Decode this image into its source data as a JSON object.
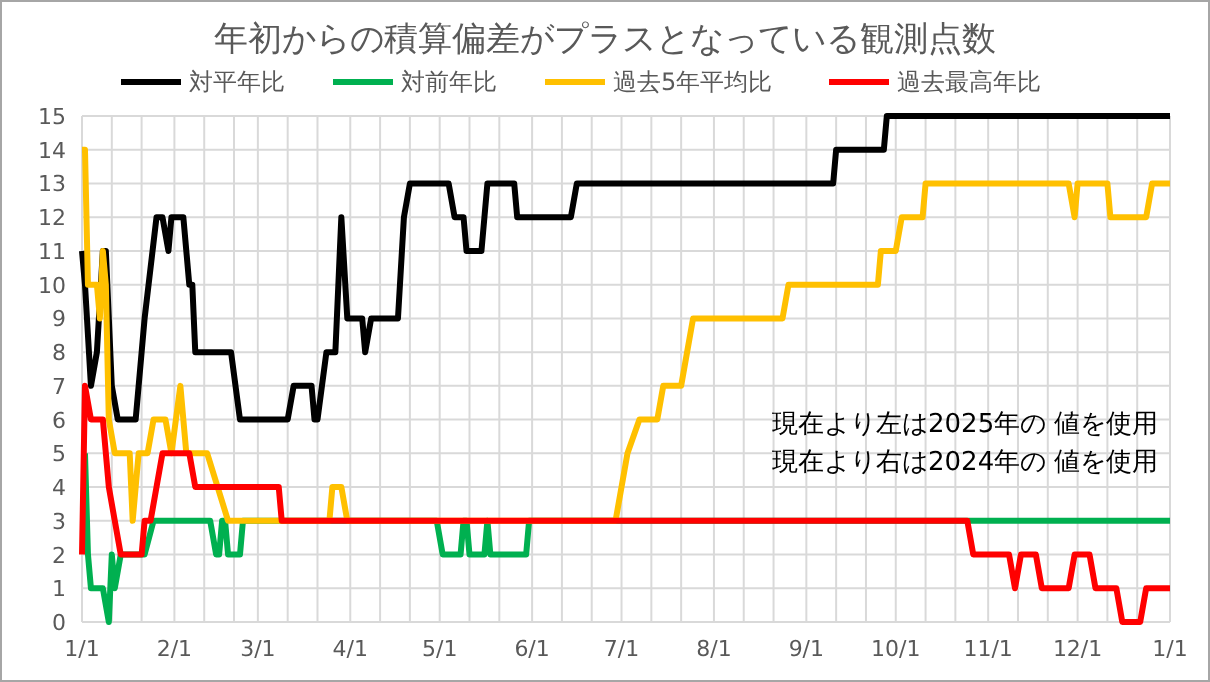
{
  "chart_data": {
    "type": "line",
    "title": "年初からの積算偏差がプラスとなっている観測点数",
    "xlim": [
      "2025-01-01",
      "2026-01-01"
    ],
    "ylim": [
      0,
      15
    ],
    "xticks": [
      {
        "value": "2025-01-01",
        "label": "1/1"
      },
      {
        "value": "2025-01-11",
        "label": null
      },
      {
        "value": "2025-01-21",
        "label": null
      },
      {
        "value": "2025-02-01",
        "label": "2/1"
      },
      {
        "value": "2025-02-11",
        "label": null
      },
      {
        "value": "2025-02-21",
        "label": null
      },
      {
        "value": "2025-03-01",
        "label": "3/1"
      },
      {
        "value": "2025-03-11",
        "label": null
      },
      {
        "value": "2025-03-21",
        "label": null
      },
      {
        "value": "2025-04-01",
        "label": "4/1"
      },
      {
        "value": "2025-04-11",
        "label": null
      },
      {
        "value": "2025-04-21",
        "label": null
      },
      {
        "value": "2025-05-01",
        "label": "5/1"
      },
      {
        "value": "2025-05-11",
        "label": null
      },
      {
        "value": "2025-05-21",
        "label": null
      },
      {
        "value": "2025-06-01",
        "label": "6/1"
      },
      {
        "value": "2025-06-11",
        "label": null
      },
      {
        "value": "2025-06-21",
        "label": null
      },
      {
        "value": "2025-07-01",
        "label": "7/1"
      },
      {
        "value": "2025-07-11",
        "label": null
      },
      {
        "value": "2025-07-21",
        "label": null
      },
      {
        "value": "2025-08-01",
        "label": "8/1"
      },
      {
        "value": "2025-08-11",
        "label": null
      },
      {
        "value": "2025-08-21",
        "label": null
      },
      {
        "value": "2025-09-01",
        "label": "9/1"
      },
      {
        "value": "2025-09-11",
        "label": null
      },
      {
        "value": "2025-09-21",
        "label": null
      },
      {
        "value": "2025-10-01",
        "label": "10/1"
      },
      {
        "value": "2025-10-11",
        "label": null
      },
      {
        "value": "2025-10-21",
        "label": null
      },
      {
        "value": "2025-11-01",
        "label": "11/1"
      },
      {
        "value": "2025-11-11",
        "label": null
      },
      {
        "value": "2025-11-21",
        "label": null
      },
      {
        "value": "2025-12-01",
        "label": "12/1"
      },
      {
        "value": "2025-12-11",
        "label": null
      },
      {
        "value": "2025-12-21",
        "label": null
      },
      {
        "value": "2026-01-01",
        "label": "1/1"
      }
    ],
    "yticks": [
      0,
      1,
      2,
      3,
      4,
      5,
      6,
      7,
      8,
      9,
      10,
      11,
      12,
      13,
      14,
      15
    ],
    "grid": true,
    "legend": "top",
    "line_style": "solid",
    "annotations": [
      "現在より左は2025年の 値を使用",
      "現在より右は2024年の 値を使用"
    ],
    "series": [
      {
        "name": "対平年比",
        "color": "#000000",
        "x": [
          "2025-01-01",
          "2025-01-02",
          "2025-01-04",
          "2025-01-06",
          "2025-01-08",
          "2025-01-09",
          "2025-01-11",
          "2025-01-13",
          "2025-01-19",
          "2025-01-21",
          "2025-01-22",
          "2025-01-26",
          "2025-01-28",
          "2025-01-30",
          "2025-01-31",
          "2025-02-04",
          "2025-02-06",
          "2025-02-07",
          "2025-02-08",
          "2025-02-20",
          "2025-02-23",
          "2025-03-11",
          "2025-03-13",
          "2025-03-19",
          "2025-03-20",
          "2025-03-21",
          "2025-03-24",
          "2025-03-27",
          "2025-03-29",
          "2025-03-31",
          "2025-04-05",
          "2025-04-06",
          "2025-04-08",
          "2025-04-17",
          "2025-04-19",
          "2025-04-21",
          "2025-05-04",
          "2025-05-06",
          "2025-05-09",
          "2025-05-10",
          "2025-05-15",
          "2025-05-17",
          "2025-05-26",
          "2025-05-27",
          "2025-06-14",
          "2025-06-16",
          "2025-09-10",
          "2025-09-11",
          "2025-09-27",
          "2025-09-28",
          "2026-01-01"
        ],
        "values": [
          11,
          10,
          7,
          8,
          11,
          11,
          7,
          6,
          6,
          8,
          9,
          12,
          12,
          11,
          12,
          12,
          10,
          10,
          8,
          8,
          6,
          6,
          7,
          7,
          6,
          6,
          8,
          8,
          12,
          9,
          9,
          8,
          9,
          9,
          12,
          13,
          13,
          12,
          12,
          11,
          11,
          13,
          13,
          12,
          12,
          13,
          13,
          14,
          14,
          15,
          15
        ]
      },
      {
        "name": "対前年比",
        "color": "#00b050",
        "x": [
          "2025-01-02",
          "2025-01-03",
          "2025-01-04",
          "2025-01-08",
          "2025-01-10",
          "2025-01-11",
          "2025-01-12",
          "2025-01-14",
          "2025-01-22",
          "2025-01-25",
          "2025-02-13",
          "2025-02-15",
          "2025-02-16",
          "2025-02-17",
          "2025-02-18",
          "2025-02-19",
          "2025-02-23",
          "2025-02-24",
          "2025-03-07",
          "2025-04-30",
          "2025-05-02",
          "2025-05-08",
          "2025-05-09",
          "2025-05-10",
          "2025-05-11",
          "2025-05-16",
          "2025-05-17",
          "2025-05-18",
          "2025-05-30",
          "2025-05-31",
          "2025-06-01",
          "2025-10-24",
          "2026-01-01"
        ],
        "values": [
          5,
          2,
          1,
          1,
          0,
          2,
          1,
          2,
          2,
          3,
          3,
          2,
          2,
          3,
          3,
          2,
          2,
          3,
          3,
          3,
          2,
          2,
          3,
          3,
          2,
          2,
          3,
          2,
          2,
          3,
          3,
          3,
          3
        ]
      },
      {
        "name": "過去5年平均比",
        "color": "#ffc000",
        "x": [
          "2025-01-01",
          "2025-01-02",
          "2025-01-03",
          "2025-01-06",
          "2025-01-07",
          "2025-01-08",
          "2025-01-09",
          "2025-01-10",
          "2025-01-12",
          "2025-01-17",
          "2025-01-18",
          "2025-01-20",
          "2025-01-23",
          "2025-01-25",
          "2025-01-29",
          "2025-01-31",
          "2025-02-03",
          "2025-02-05",
          "2025-02-12",
          "2025-02-19",
          "2025-03-25",
          "2025-03-26",
          "2025-03-29",
          "2025-03-31",
          "2025-06-29",
          "2025-07-01",
          "2025-07-03",
          "2025-07-07",
          "2025-07-13",
          "2025-07-15",
          "2025-07-21",
          "2025-07-23",
          "2025-07-25",
          "2025-08-24",
          "2025-08-26",
          "2025-09-25",
          "2025-09-26",
          "2025-10-01",
          "2025-10-03",
          "2025-10-10",
          "2025-10-11",
          "2025-11-28",
          "2025-11-30",
          "2025-12-01",
          "2025-12-11",
          "2025-12-12",
          "2025-12-24",
          "2025-12-26",
          "2026-01-01"
        ],
        "values": [
          14,
          14,
          10,
          10,
          9,
          11,
          10,
          6,
          5,
          5,
          3,
          5,
          5,
          6,
          6,
          5,
          7,
          5,
          5,
          3,
          3,
          4,
          4,
          3,
          3,
          4,
          5,
          6,
          6,
          7,
          7,
          8,
          9,
          9,
          10,
          10,
          11,
          11,
          12,
          12,
          13,
          13,
          12,
          13,
          13,
          12,
          12,
          13,
          13
        ]
      },
      {
        "name": "過去最高年比",
        "color": "#ff0000",
        "x": [
          "2025-01-01",
          "2025-01-02",
          "2025-01-04",
          "2025-01-08",
          "2025-01-10",
          "2025-01-12",
          "2025-01-14",
          "2025-01-21",
          "2025-01-22",
          "2025-01-24",
          "2025-01-26",
          "2025-01-28",
          "2025-02-06",
          "2025-02-08",
          "2025-03-08",
          "2025-03-09",
          "2025-10-25",
          "2025-10-27",
          "2025-11-08",
          "2025-11-10",
          "2025-11-12",
          "2025-11-17",
          "2025-11-19",
          "2025-11-28",
          "2025-11-30",
          "2025-12-05",
          "2025-12-07",
          "2025-12-14",
          "2025-12-16",
          "2025-12-22",
          "2025-12-24",
          "2026-01-01"
        ],
        "values": [
          2,
          7,
          6,
          6,
          4,
          3,
          2,
          2,
          3,
          3,
          4,
          5,
          5,
          4,
          4,
          3,
          3,
          2,
          2,
          1,
          2,
          2,
          1,
          1,
          2,
          2,
          1,
          1,
          0,
          0,
          1,
          1
        ]
      }
    ]
  }
}
